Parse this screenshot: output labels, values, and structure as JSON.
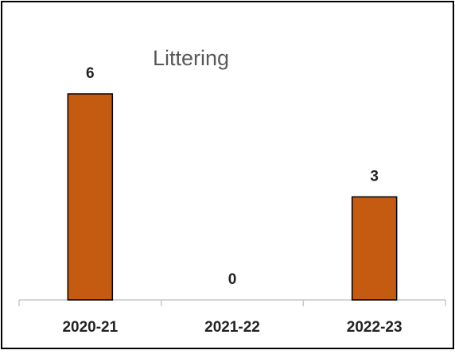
{
  "chart_data": {
    "type": "bar",
    "title": "Littering",
    "categories": [
      "2020-21",
      "2021-22",
      "2022-23"
    ],
    "values": [
      6,
      0,
      3
    ],
    "xlabel": "",
    "ylabel": "",
    "ylim": [
      0,
      6
    ],
    "grid": false,
    "legend": "none",
    "bar_color": "#C55A11",
    "bar_edge_color": "#000000"
  }
}
